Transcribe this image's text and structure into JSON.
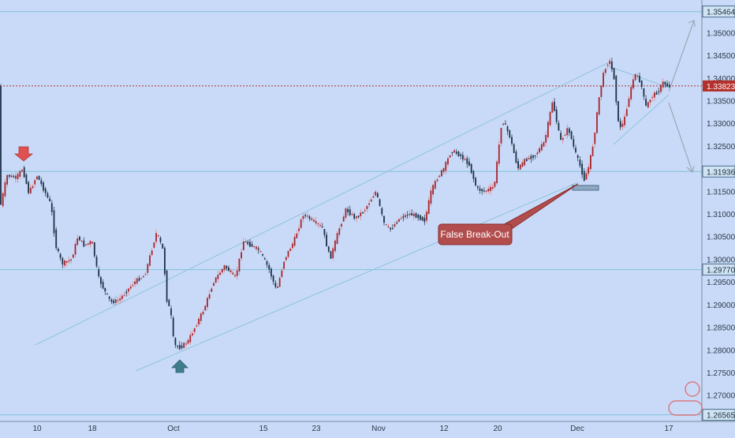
{
  "chart_data": {
    "type": "candlestick",
    "instrument": "",
    "y_ticks": [
      "1.35000",
      "1.34500",
      "1.34000",
      "1.33500",
      "1.33000",
      "1.32500",
      "1.32000",
      "1.31500",
      "1.31000",
      "1.30500",
      "1.30000",
      "1.29500",
      "1.29000",
      "1.28500",
      "1.28000",
      "1.27500",
      "1.27000"
    ],
    "x_ticks": [
      "10",
      "18",
      "Oct",
      "15",
      "23",
      "Nov",
      "12",
      "20",
      "Dec",
      "17"
    ],
    "ylim": [
      1.2642,
      1.3572
    ],
    "horizontal_levels": [
      {
        "label": "1.35464",
        "value": 1.35464,
        "style": "solid"
      },
      {
        "label": "1.31936",
        "value": 1.31936,
        "style": "solid"
      },
      {
        "label": "1.29770",
        "value": 1.2977,
        "style": "solid"
      },
      {
        "label": "1.26565",
        "value": 1.26565,
        "style": "solid"
      },
      {
        "label": "1.33823",
        "value": 1.33823,
        "style": "dotted-current"
      }
    ],
    "annotation": {
      "text": "False Break-Out"
    },
    "price_path": [
      [
        0,
        1.31
      ],
      [
        10,
        1.3185
      ],
      [
        22,
        1.318
      ],
      [
        30,
        1.32
      ],
      [
        38,
        1.3145
      ],
      [
        48,
        1.3185
      ],
      [
        58,
        1.315
      ],
      [
        66,
        1.312
      ],
      [
        72,
        1.303
      ],
      [
        80,
        1.299
      ],
      [
        92,
        1.3
      ],
      [
        100,
        1.305
      ],
      [
        108,
        1.303
      ],
      [
        118,
        1.304
      ],
      [
        126,
        1.296
      ],
      [
        134,
        1.293
      ],
      [
        142,
        1.2905
      ],
      [
        152,
        1.291
      ],
      [
        162,
        1.293
      ],
      [
        172,
        1.295
      ],
      [
        185,
        1.2965
      ],
      [
        192,
        1.301
      ],
      [
        200,
        1.306
      ],
      [
        208,
        1.302
      ],
      [
        213,
        1.291
      ],
      [
        218,
        1.288
      ],
      [
        222,
        1.281
      ],
      [
        230,
        1.2805
      ],
      [
        240,
        1.282
      ],
      [
        250,
        1.2855
      ],
      [
        260,
        1.289
      ],
      [
        272,
        1.295
      ],
      [
        286,
        1.2985
      ],
      [
        300,
        1.296
      ],
      [
        310,
        1.304
      ],
      [
        320,
        1.303
      ],
      [
        330,
        1.302
      ],
      [
        342,
        1.298
      ],
      [
        352,
        1.293
      ],
      [
        362,
        1.3
      ],
      [
        374,
        1.304
      ],
      [
        386,
        1.31
      ],
      [
        398,
        1.3085
      ],
      [
        410,
        1.307
      ],
      [
        420,
        1.3
      ],
      [
        430,
        1.306
      ],
      [
        440,
        1.311
      ],
      [
        452,
        1.309
      ],
      [
        464,
        1.311
      ],
      [
        478,
        1.315
      ],
      [
        488,
        1.308
      ],
      [
        496,
        1.3065
      ],
      [
        508,
        1.309
      ],
      [
        520,
        1.31
      ],
      [
        530,
        1.3095
      ],
      [
        540,
        1.3085
      ],
      [
        548,
        1.315
      ],
      [
        556,
        1.318
      ],
      [
        564,
        1.32
      ],
      [
        574,
        1.324
      ],
      [
        584,
        1.323
      ],
      [
        596,
        1.321
      ],
      [
        606,
        1.3155
      ],
      [
        616,
        1.315
      ],
      [
        628,
        1.316
      ],
      [
        638,
        1.331
      ],
      [
        648,
        1.327
      ],
      [
        658,
        1.32
      ],
      [
        668,
        1.322
      ],
      [
        680,
        1.323
      ],
      [
        692,
        1.326
      ],
      [
        702,
        1.335
      ],
      [
        712,
        1.326
      ],
      [
        722,
        1.329
      ],
      [
        730,
        1.324
      ],
      [
        738,
        1.32
      ],
      [
        742,
        1.3175
      ],
      [
        748,
        1.3205
      ],
      [
        754,
        1.326
      ],
      [
        762,
        1.337
      ],
      [
        768,
        1.342
      ],
      [
        774,
        1.344
      ],
      [
        780,
        1.34
      ],
      [
        786,
        1.329
      ],
      [
        792,
        1.33
      ],
      [
        798,
        1.335
      ],
      [
        806,
        1.341
      ],
      [
        814,
        1.339
      ],
      [
        820,
        1.3335
      ],
      [
        828,
        1.336
      ],
      [
        836,
        1.337
      ],
      [
        842,
        1.339
      ],
      [
        848,
        1.3382
      ],
      [
        852,
        1.3382
      ]
    ]
  }
}
